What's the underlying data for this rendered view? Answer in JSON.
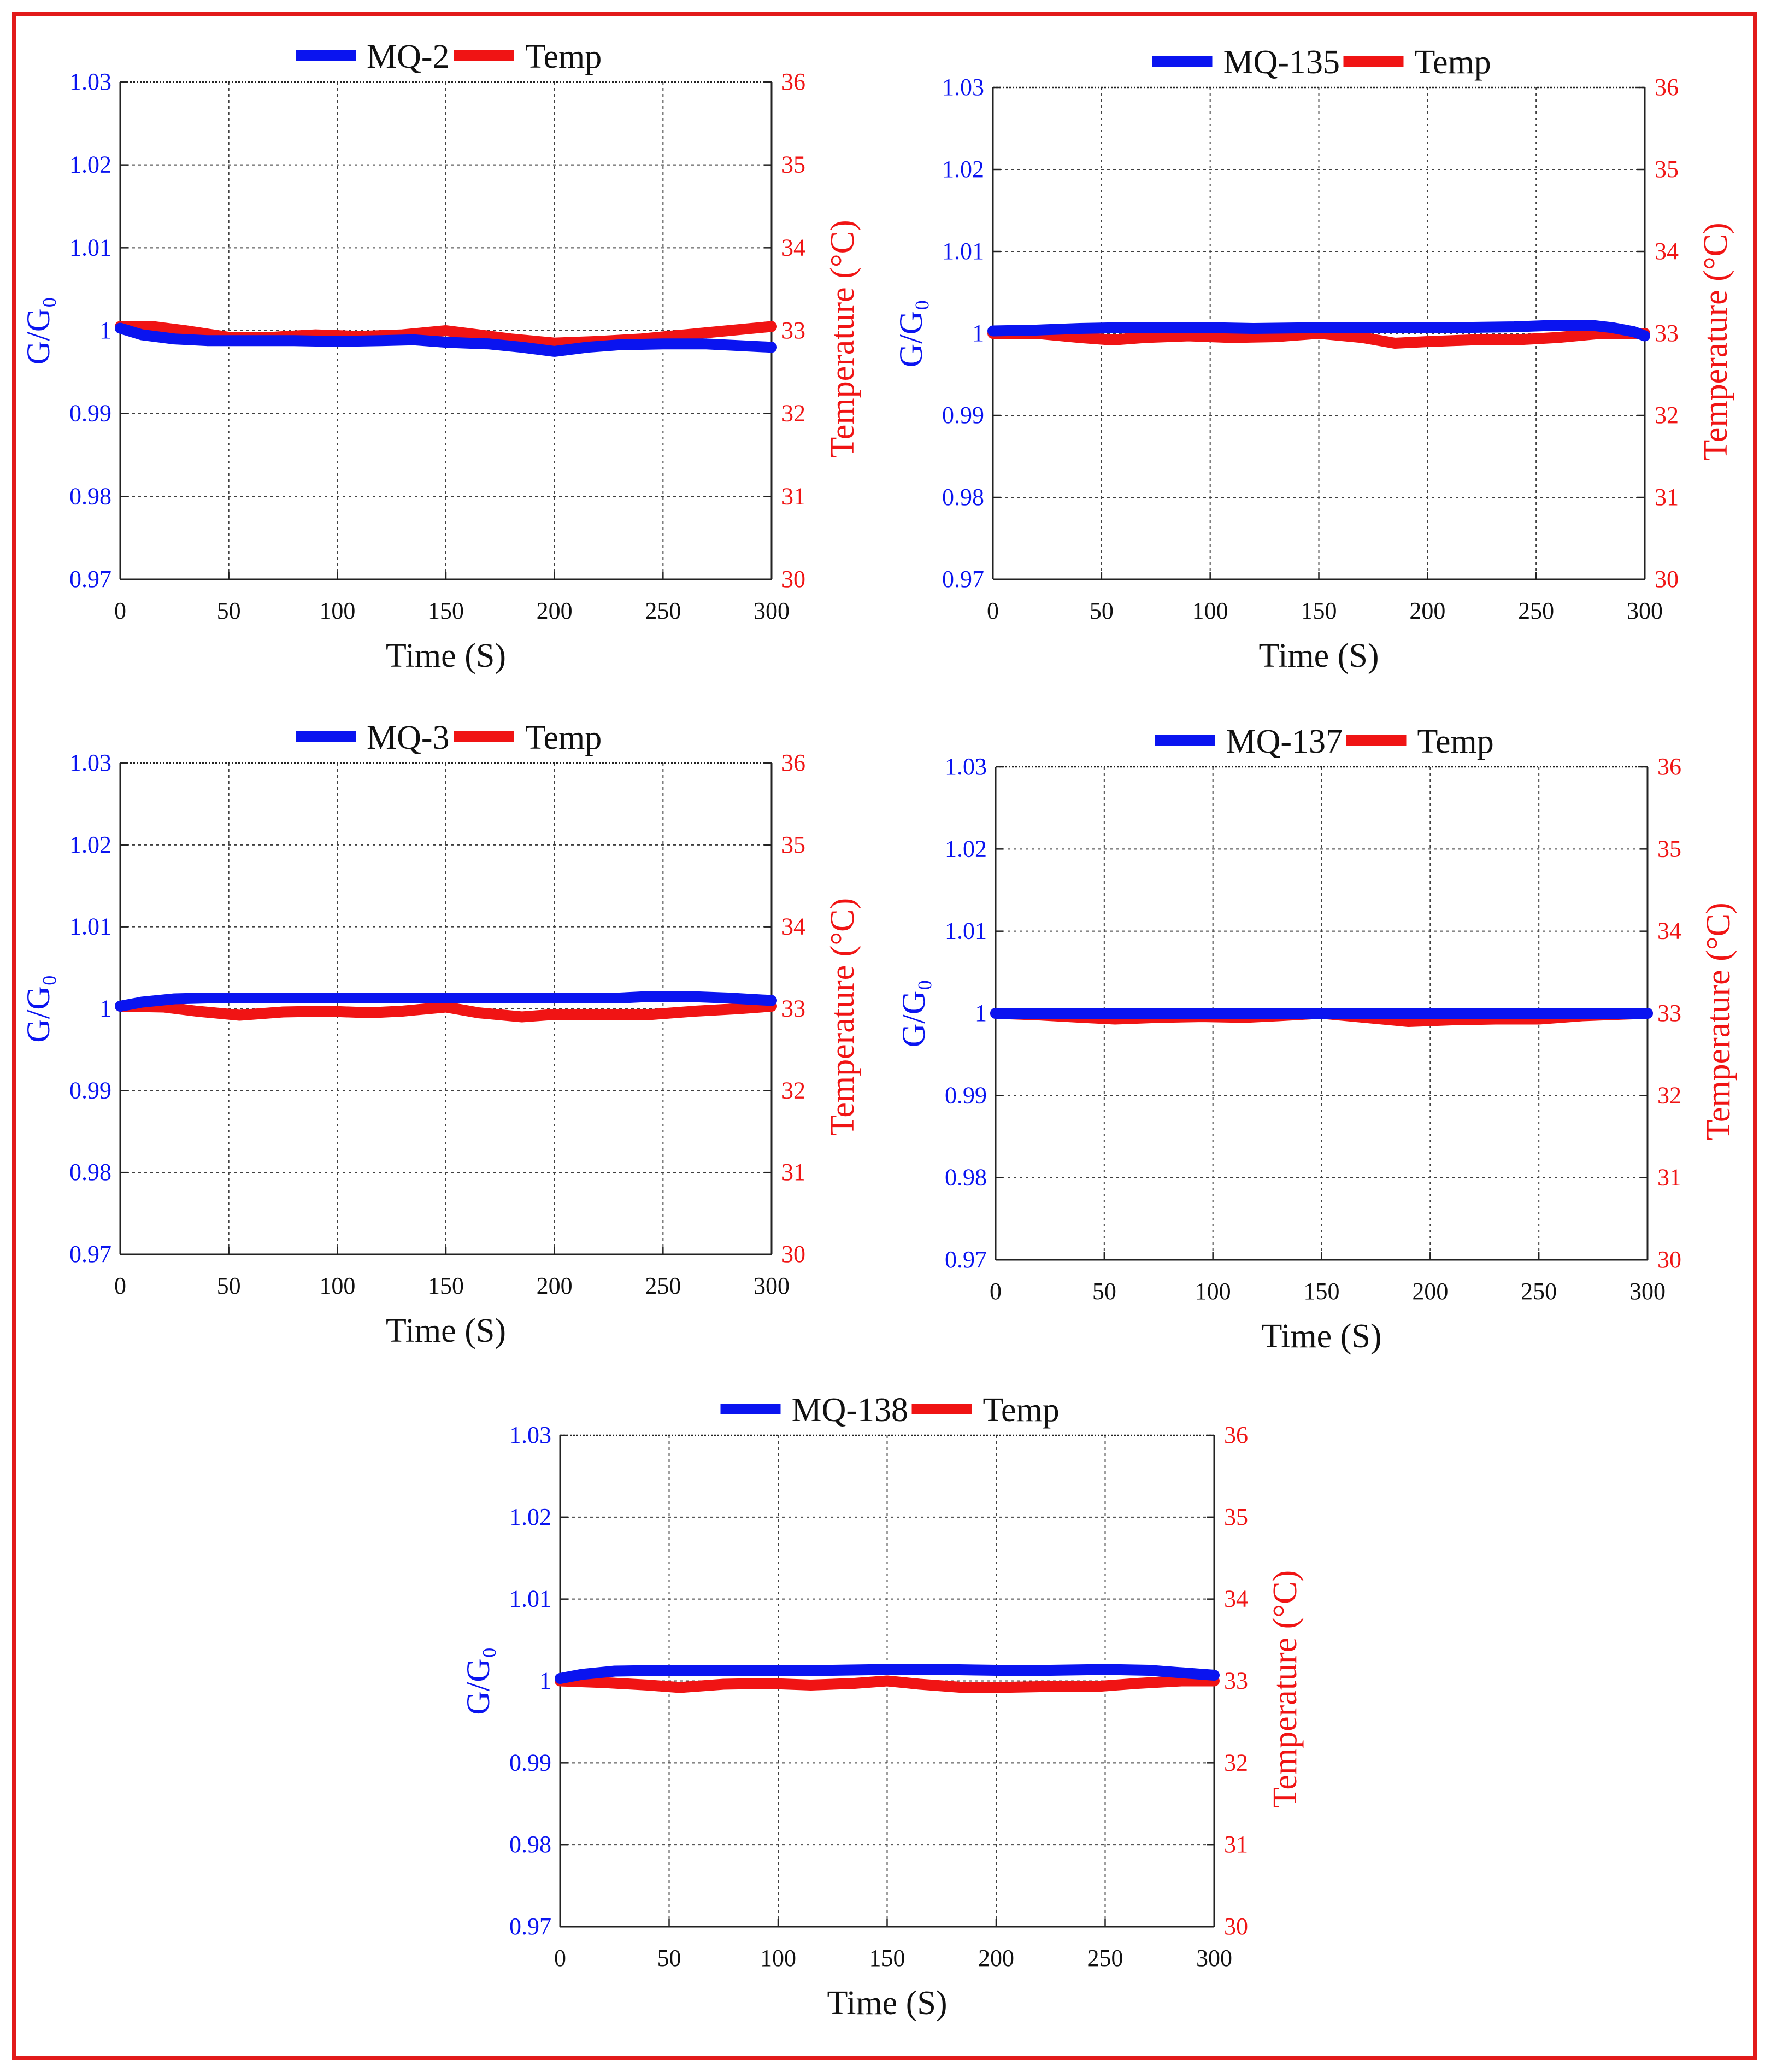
{
  "figure": {
    "frame_color": "#e21a1a",
    "sensor_color": "#0a14f0",
    "temp_color": "#f01414",
    "grid_color": "#404040"
  },
  "chart_data": [
    {
      "type": "line",
      "title": "",
      "xlabel": "Time (S)",
      "ylabel_left": "G/G₀",
      "ylabel_right": "Temperature (°C)",
      "xlim": [
        0,
        300
      ],
      "ylim_left": [
        0.97,
        1.03
      ],
      "ylim_right": [
        30,
        36
      ],
      "x_ticks": [
        "0",
        "50",
        "100",
        "150",
        "200",
        "250",
        "300"
      ],
      "y_ticks_left": [
        "0.97",
        "0.98",
        "0.99",
        "1",
        "1.01",
        "1.02",
        "1.03"
      ],
      "y_ticks_right": [
        "30",
        "31",
        "32",
        "33",
        "34",
        "35",
        "36"
      ],
      "grid": true,
      "legend_position": "top-center",
      "series": [
        {
          "name": "MQ-2",
          "axis": "left",
          "x": [
            0,
            10,
            25,
            40,
            60,
            80,
            100,
            120,
            135,
            150,
            170,
            185,
            200,
            215,
            230,
            250,
            270,
            285,
            300
          ],
          "values": [
            1.0003,
            0.9995,
            0.999,
            0.9988,
            0.9988,
            0.9988,
            0.9987,
            0.9988,
            0.9989,
            0.9986,
            0.9984,
            0.998,
            0.9975,
            0.998,
            0.9983,
            0.9984,
            0.9984,
            0.9982,
            0.998
          ]
        },
        {
          "name": "Temp",
          "axis": "right",
          "x": [
            0,
            15,
            30,
            50,
            70,
            90,
            110,
            130,
            150,
            165,
            180,
            200,
            220,
            240,
            260,
            280,
            300
          ],
          "values": [
            33.05,
            33.05,
            33.0,
            32.92,
            32.92,
            32.95,
            32.93,
            32.95,
            33.0,
            32.95,
            32.9,
            32.85,
            32.87,
            32.9,
            32.95,
            33.0,
            33.05
          ]
        }
      ]
    },
    {
      "type": "line",
      "title": "",
      "xlabel": "Time (S)",
      "ylabel_left": "G/G₀",
      "ylabel_right": "Temperature (°C)",
      "xlim": [
        0,
        300
      ],
      "ylim_left": [
        0.97,
        1.03
      ],
      "ylim_right": [
        30,
        36
      ],
      "x_ticks": [
        "0",
        "50",
        "100",
        "150",
        "200",
        "250",
        "300"
      ],
      "y_ticks_left": [
        "0.97",
        "0.98",
        "0.99",
        "1",
        "1.01",
        "1.02",
        "1.03"
      ],
      "y_ticks_right": [
        "30",
        "31",
        "32",
        "33",
        "34",
        "35",
        "36"
      ],
      "grid": true,
      "legend_position": "top-center",
      "series": [
        {
          "name": "MQ-135",
          "axis": "left",
          "x": [
            0,
            20,
            40,
            60,
            80,
            100,
            120,
            150,
            180,
            210,
            240,
            260,
            275,
            285,
            295,
            300
          ],
          "values": [
            1.0003,
            1.0004,
            1.0006,
            1.0007,
            1.0007,
            1.0007,
            1.0006,
            1.0007,
            1.0007,
            1.0007,
            1.0008,
            1.001,
            1.001,
            1.0007,
            1.0002,
            0.9997
          ]
        },
        {
          "name": "Temp",
          "axis": "right",
          "x": [
            0,
            20,
            40,
            55,
            70,
            90,
            110,
            130,
            150,
            170,
            185,
            200,
            220,
            240,
            260,
            280,
            300
          ],
          "values": [
            33.0,
            33.0,
            32.95,
            32.92,
            32.95,
            32.97,
            32.95,
            32.96,
            33.0,
            32.95,
            32.88,
            32.9,
            32.92,
            32.92,
            32.95,
            33.0,
            33.0
          ]
        }
      ]
    },
    {
      "type": "line",
      "title": "",
      "xlabel": "Time (S)",
      "ylabel_left": "G/G₀",
      "ylabel_right": "Temperature (°C)",
      "xlim": [
        0,
        300
      ],
      "ylim_left": [
        0.97,
        1.03
      ],
      "ylim_right": [
        30,
        36
      ],
      "x_ticks": [
        "0",
        "50",
        "100",
        "150",
        "200",
        "250",
        "300"
      ],
      "y_ticks_left": [
        "0.97",
        "0.98",
        "0.99",
        "1",
        "1.01",
        "1.02",
        "1.03"
      ],
      "y_ticks_right": [
        "30",
        "31",
        "32",
        "33",
        "34",
        "35",
        "36"
      ],
      "grid": true,
      "legend_position": "top-center",
      "series": [
        {
          "name": "MQ-3",
          "axis": "left",
          "x": [
            0,
            10,
            25,
            40,
            60,
            100,
            150,
            200,
            230,
            245,
            260,
            280,
            300
          ],
          "values": [
            1.0003,
            1.0008,
            1.0012,
            1.0013,
            1.0013,
            1.0013,
            1.0013,
            1.0013,
            1.0013,
            1.0015,
            1.0015,
            1.0013,
            1.001
          ]
        },
        {
          "name": "Temp",
          "axis": "right",
          "x": [
            0,
            20,
            35,
            55,
            75,
            95,
            115,
            130,
            150,
            165,
            185,
            200,
            220,
            245,
            265,
            285,
            300
          ],
          "values": [
            33.03,
            33.02,
            32.97,
            32.92,
            32.96,
            32.97,
            32.95,
            32.97,
            33.02,
            32.95,
            32.9,
            32.93,
            32.93,
            32.93,
            32.97,
            33.0,
            33.03
          ]
        }
      ]
    },
    {
      "type": "line",
      "title": "",
      "xlabel": "Time (S)",
      "ylabel_left": "G/G₀",
      "ylabel_right": "Temperature (°C)",
      "xlim": [
        0,
        300
      ],
      "ylim_left": [
        0.97,
        1.03
      ],
      "ylim_right": [
        30,
        36
      ],
      "x_ticks": [
        "0",
        "50",
        "100",
        "150",
        "200",
        "250",
        "300"
      ],
      "y_ticks_left": [
        "0.97",
        "0.98",
        "0.99",
        "1",
        "1.01",
        "1.02",
        "1.03"
      ],
      "y_ticks_right": [
        "30",
        "31",
        "32",
        "33",
        "34",
        "35",
        "36"
      ],
      "grid": true,
      "legend_position": "top-center",
      "series": [
        {
          "name": "MQ-137",
          "axis": "left",
          "x": [
            0,
            50,
            100,
            150,
            200,
            250,
            300
          ],
          "values": [
            1.0,
            1.0,
            1.0,
            1.0,
            1.0,
            1.0,
            1.0
          ]
        },
        {
          "name": "Temp",
          "axis": "right",
          "x": [
            0,
            20,
            40,
            55,
            75,
            95,
            115,
            130,
            150,
            170,
            190,
            210,
            230,
            250,
            270,
            300
          ],
          "values": [
            33.0,
            32.98,
            32.95,
            32.93,
            32.95,
            32.96,
            32.95,
            32.97,
            33.0,
            32.95,
            32.9,
            32.92,
            32.93,
            32.93,
            32.97,
            33.0
          ]
        }
      ]
    },
    {
      "type": "line",
      "title": "",
      "xlabel": "Time (S)",
      "ylabel_left": "G/G₀",
      "ylabel_right": "Temperature (°C)",
      "xlim": [
        0,
        300
      ],
      "ylim_left": [
        0.97,
        1.03
      ],
      "ylim_right": [
        30,
        36
      ],
      "x_ticks": [
        "0",
        "50",
        "100",
        "150",
        "200",
        "250",
        "300"
      ],
      "y_ticks_left": [
        "0.97",
        "0.98",
        "0.99",
        "1",
        "1.01",
        "1.02",
        "1.03"
      ],
      "y_ticks_right": [
        "30",
        "31",
        "32",
        "33",
        "34",
        "35",
        "36"
      ],
      "grid": true,
      "legend_position": "top-center",
      "series": [
        {
          "name": "MQ-138",
          "axis": "left",
          "x": [
            0,
            10,
            25,
            50,
            75,
            100,
            125,
            150,
            175,
            200,
            225,
            250,
            270,
            285,
            300
          ],
          "values": [
            1.0003,
            1.0008,
            1.0012,
            1.0013,
            1.0013,
            1.0013,
            1.0013,
            1.0014,
            1.0014,
            1.0013,
            1.0013,
            1.0014,
            1.0013,
            1.001,
            1.0007
          ]
        },
        {
          "name": "Temp",
          "axis": "right",
          "x": [
            0,
            20,
            40,
            55,
            75,
            95,
            115,
            135,
            150,
            165,
            185,
            200,
            220,
            245,
            265,
            285,
            300
          ],
          "values": [
            33.0,
            32.98,
            32.95,
            32.92,
            32.96,
            32.97,
            32.95,
            32.97,
            33.0,
            32.96,
            32.92,
            32.92,
            32.93,
            32.93,
            32.97,
            33.0,
            33.0
          ]
        }
      ]
    }
  ]
}
